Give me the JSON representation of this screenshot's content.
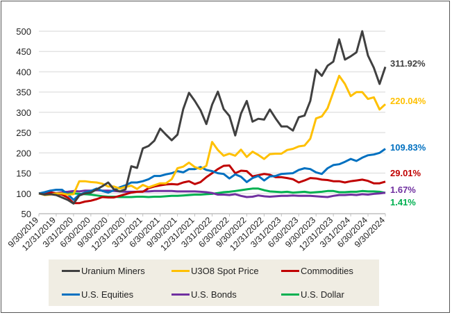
{
  "chart_data": {
    "type": "line",
    "title": "",
    "xlabel": "",
    "ylabel": "",
    "ylim": [
      50,
      500
    ],
    "yticks": [
      50,
      100,
      150,
      200,
      250,
      300,
      350,
      400,
      450,
      500
    ],
    "grid": true,
    "legend_position": "bottom",
    "x_tick_labels": [
      "9/30/2019",
      "12/31/2019",
      "3/31/2020",
      "6/30/2020",
      "9/30/2020",
      "12/31/2020",
      "3/31/2021",
      "6/30/2021",
      "9/30/2021",
      "12/31/2021",
      "3/31/2022",
      "6/30/2022",
      "9/30/2022",
      "12/31/2022",
      "3/31/2023",
      "6/30/2023",
      "9/30/2023",
      "12/31/2023",
      "3/31/2024",
      "6/30/2024",
      "9/30/2024"
    ],
    "series": [
      {
        "name": "Uranium Miners",
        "color": "#404040",
        "end_label": "311.92%",
        "values": [
          100,
          97,
          98,
          96,
          90,
          84,
          75,
          95,
          100,
          102,
          110,
          118,
          127,
          110,
          105,
          110,
          167,
          163,
          211,
          217,
          230,
          260,
          245,
          231,
          245,
          308,
          348,
          328,
          305,
          271,
          319,
          351,
          308,
          291,
          243,
          297,
          328,
          277,
          284,
          282,
          307,
          285,
          265,
          265,
          255,
          288,
          292,
          328,
          405,
          390,
          415,
          425,
          480,
          430,
          438,
          448,
          500,
          440,
          410,
          370,
          412
        ]
      },
      {
        "name": "U3O8 Spot Price",
        "color": "#ffc000",
        "end_label": "220.04%",
        "values": [
          100,
          96,
          97,
          100,
          100,
          97,
          98,
          130,
          130,
          128,
          127,
          124,
          117,
          117,
          112,
          116,
          119,
          111,
          121,
          115,
          120,
          125,
          125,
          135,
          162,
          166,
          176,
          165,
          160,
          168,
          227,
          207,
          193,
          198,
          193,
          208,
          190,
          203,
          195,
          185,
          197,
          198,
          198,
          207,
          210,
          216,
          218,
          235,
          285,
          290,
          310,
          350,
          390,
          370,
          340,
          350,
          350,
          333,
          337,
          307,
          320
        ]
      },
      {
        "name": "Commodities",
        "color": "#c00000",
        "end_label": "29.01%",
        "values": [
          100,
          101,
          103,
          100,
          97,
          90,
          76,
          76,
          80,
          82,
          86,
          91,
          90,
          90,
          94,
          98,
          102,
          104,
          104,
          113,
          117,
          120,
          122,
          123,
          122,
          127,
          130,
          123,
          128,
          140,
          150,
          160,
          168,
          169,
          150,
          156,
          155,
          142,
          145,
          148,
          146,
          140,
          140,
          138,
          135,
          127,
          132,
          138,
          137,
          134,
          133,
          130,
          130,
          127,
          130,
          132,
          134,
          131,
          125,
          125,
          129
        ]
      },
      {
        "name": "U.S. Equities",
        "color": "#0070c0",
        "end_label": "109.83%",
        "values": [
          100,
          103,
          107,
          109,
          109,
          98,
          84,
          97,
          102,
          106,
          112,
          106,
          102,
          108,
          115,
          120,
          127,
          127,
          130,
          135,
          143,
          143,
          147,
          150,
          155,
          152,
          160,
          160,
          165,
          158,
          155,
          150,
          148,
          137,
          147,
          141,
          128,
          138,
          143,
          132,
          142,
          143,
          148,
          149,
          150,
          158,
          162,
          160,
          152,
          148,
          162,
          170,
          172,
          178,
          185,
          180,
          188,
          194,
          196,
          200,
          210
        ]
      },
      {
        "name": "U.S. Bonds",
        "color": "#7030a0",
        "end_label": "1.67%",
        "values": [
          100,
          100,
          101,
          101,
          103,
          104,
          106,
          105,
          107,
          107,
          108,
          107,
          107,
          106,
          105,
          104,
          104,
          104,
          105,
          105,
          106,
          106,
          106,
          106,
          105,
          105,
          105,
          105,
          104,
          103,
          101,
          97,
          97,
          96,
          98,
          94,
          91,
          92,
          95,
          93,
          92,
          93,
          94,
          94,
          95,
          94,
          94,
          94,
          93,
          92,
          91,
          94,
          96,
          96,
          97,
          96,
          98,
          97,
          99,
          100,
          101.7
        ]
      },
      {
        "name": "U.S. Dollar",
        "color": "#00b050",
        "end_label": "1.41%",
        "values": [
          100,
          99,
          99,
          98,
          98,
          101,
          100,
          99,
          98,
          97,
          95,
          93,
          92,
          92,
          91,
          91,
          91,
          92,
          92,
          91,
          92,
          92,
          93,
          94,
          94,
          95,
          96,
          97,
          97,
          98,
          99,
          101,
          103,
          104,
          106,
          108,
          110,
          112,
          112,
          108,
          105,
          104,
          103,
          104,
          102,
          103,
          104,
          102,
          103,
          104,
          106,
          106,
          103,
          103,
          104,
          104,
          106,
          105,
          105,
          104,
          101.4
        ]
      }
    ]
  }
}
